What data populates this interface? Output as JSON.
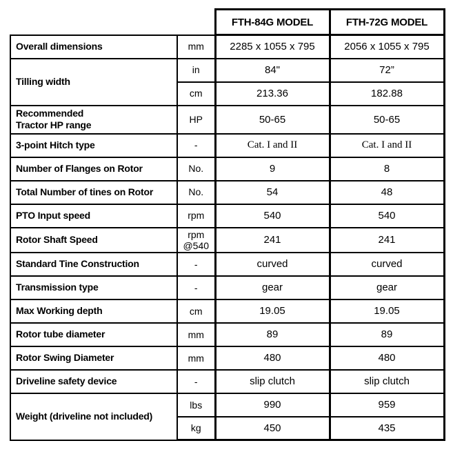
{
  "page": {
    "background_color": "#ffffff",
    "border_color": "#000000",
    "text_color": "#000000"
  },
  "table": {
    "header": {
      "model_a": "FTH-84G MODEL",
      "model_b": "FTH-72G MODEL"
    },
    "rows": [
      {
        "label": "Overall dimensions",
        "unit": "mm",
        "a": "2285 x 1055 x 795",
        "b": "2056 x 1055 x 795"
      },
      {
        "label": "Tilling width",
        "unit": "in",
        "a": "84\"",
        "b": "72”"
      },
      {
        "unit": "cm",
        "a": "213.36",
        "b": "182.88"
      },
      {
        "label": "Recommended\nTractor HP range",
        "unit": "HP",
        "a": "50-65",
        "b": "50-65"
      },
      {
        "label": "3-point Hitch type",
        "unit": "-",
        "a": "Cat. I and II",
        "b": "Cat. I and II"
      },
      {
        "label": "Number of Flanges on Rotor",
        "unit": "No.",
        "a": "9",
        "b": "8"
      },
      {
        "label": "Total Number of tines on Rotor",
        "unit": "No.",
        "a": "54",
        "b": "48"
      },
      {
        "label": "PTO Input speed",
        "unit": "rpm",
        "a": "540",
        "b": "540"
      },
      {
        "label": "Rotor Shaft Speed",
        "unit": "rpm\n@540",
        "a": "241",
        "b": "241"
      },
      {
        "label": "Standard Tine Construction",
        "unit": "-",
        "a": "curved",
        "b": "curved"
      },
      {
        "label": "Transmission type",
        "unit": "-",
        "a": "gear",
        "b": "gear"
      },
      {
        "label": "Max Working depth",
        "unit": "cm",
        "a": "19.05",
        "b": "19.05"
      },
      {
        "label": "Rotor tube diameter",
        "unit": "mm",
        "a": "89",
        "b": "89"
      },
      {
        "label": "Rotor Swing Diameter",
        "unit": "mm",
        "a": "480",
        "b": "480"
      },
      {
        "label": "Driveline safety device",
        "unit": "-",
        "a": "slip clutch",
        "b": "slip clutch"
      },
      {
        "label": "Weight (driveline not included)",
        "unit": "lbs",
        "a": "990",
        "b": "959"
      },
      {
        "unit": "kg",
        "a": "450",
        "b": "435"
      }
    ]
  }
}
